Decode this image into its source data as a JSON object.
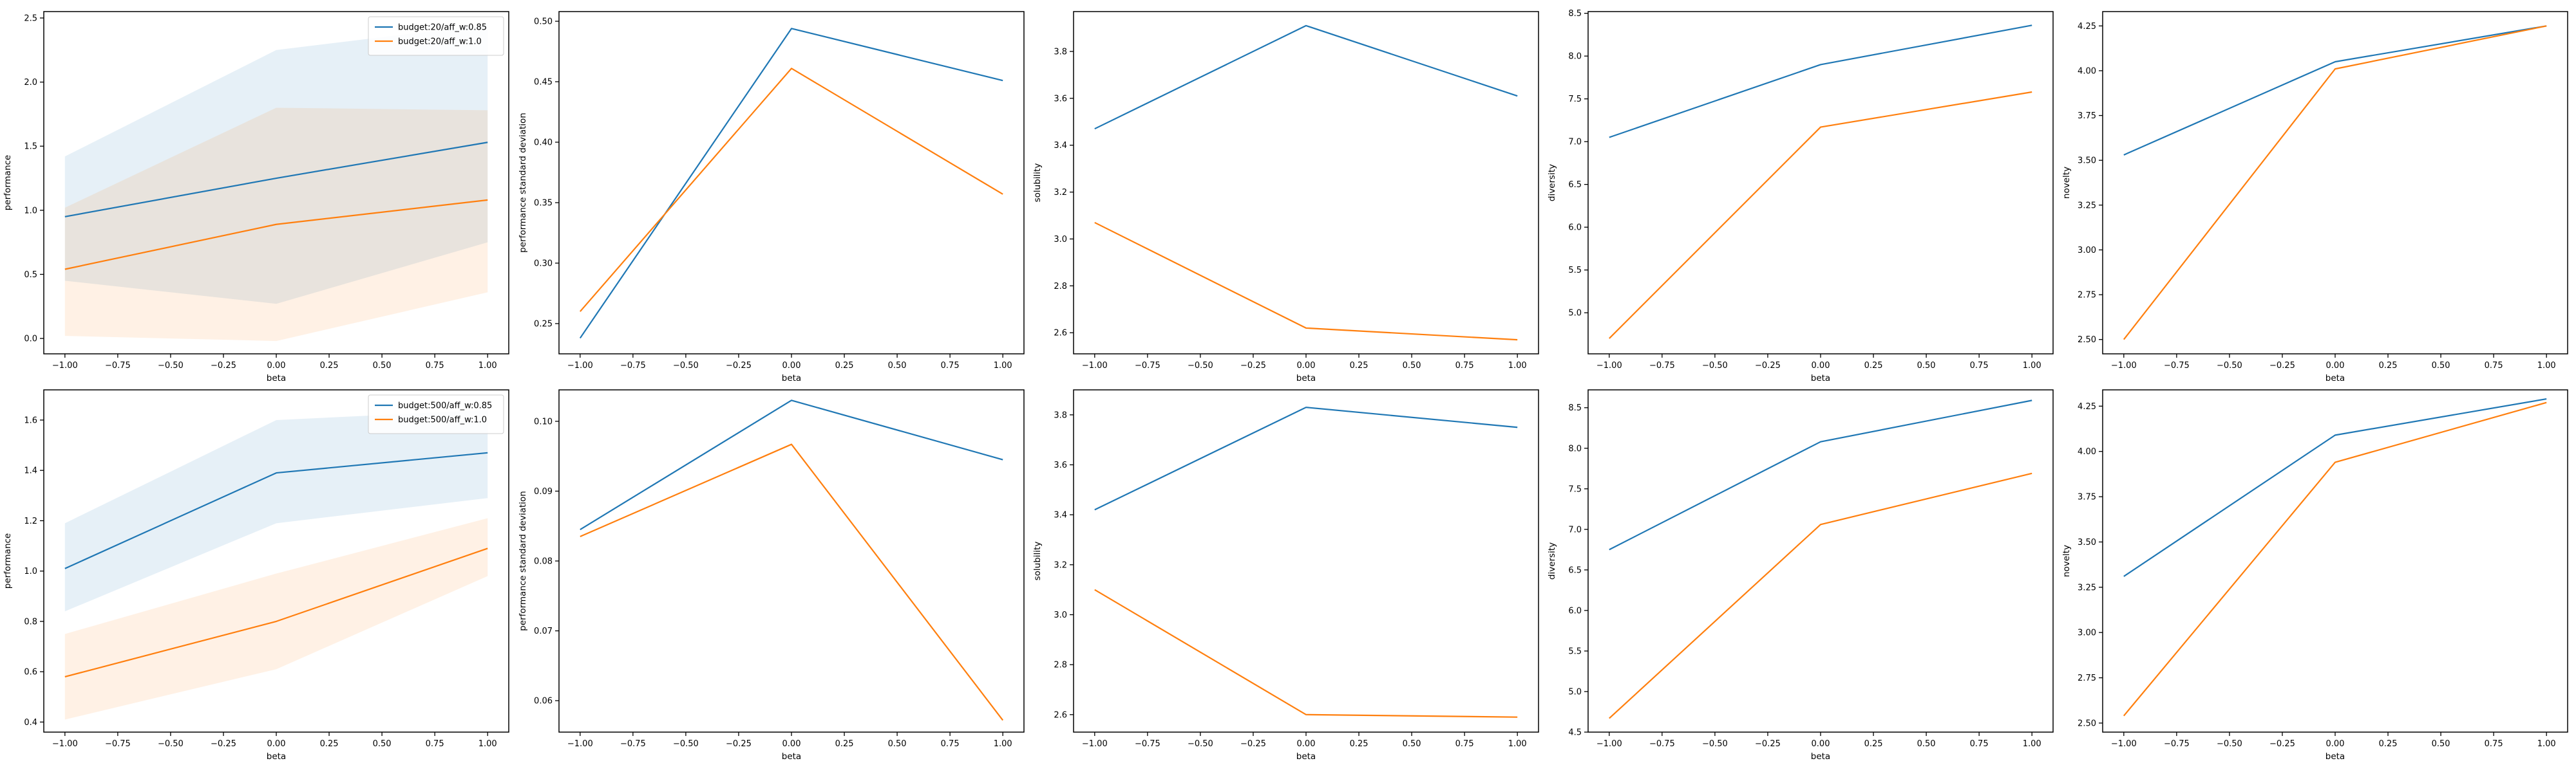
{
  "figure": {
    "colors": {
      "series_0": "#1f77b4",
      "series_1": "#ff7f0e"
    }
  },
  "chart_data": [
    {
      "type": "line",
      "xlabel": "beta",
      "ylabel": "performance",
      "x": [
        -1.0,
        0.0,
        1.0
      ],
      "xlim": [
        -1.1,
        1.1
      ],
      "ylim": [
        -0.12,
        2.55
      ],
      "xticks": [
        "−1.00",
        "−0.75",
        "−0.50",
        "−0.25",
        "0.00",
        "0.25",
        "0.50",
        "0.75",
        "1.00"
      ],
      "yticks": [
        "0.0",
        "0.5",
        "1.0",
        "1.5",
        "2.0",
        "2.5"
      ],
      "legend": "top-right",
      "series": [
        {
          "name": "budget:20/aff_w:0.85",
          "values": [
            0.95,
            1.25,
            1.53
          ],
          "band_lower": [
            0.45,
            0.27,
            0.75
          ],
          "band_upper": [
            1.42,
            2.25,
            2.45
          ]
        },
        {
          "name": "budget:20/aff_w:1.0",
          "values": [
            0.54,
            0.89,
            1.08
          ],
          "band_lower": [
            0.02,
            -0.02,
            0.36
          ],
          "band_upper": [
            1.02,
            1.8,
            1.78
          ]
        }
      ]
    },
    {
      "type": "line",
      "xlabel": "beta",
      "ylabel": "performance standard deviation",
      "x": [
        -1.0,
        0.0,
        1.0
      ],
      "xlim": [
        -1.1,
        1.1
      ],
      "ylim": [
        0.225,
        0.508
      ],
      "xticks": [
        "−1.00",
        "−0.75",
        "−0.50",
        "−0.25",
        "0.00",
        "0.25",
        "0.50",
        "0.75",
        "1.00"
      ],
      "yticks": [
        "0.25",
        "0.30",
        "0.35",
        "0.40",
        "0.45",
        "0.50"
      ],
      "series": [
        {
          "values": [
            0.238,
            0.494,
            0.451
          ]
        },
        {
          "values": [
            0.26,
            0.461,
            0.357
          ]
        }
      ]
    },
    {
      "type": "line",
      "xlabel": "beta",
      "ylabel": "solubility",
      "x": [
        -1.0,
        0.0,
        1.0
      ],
      "xlim": [
        -1.1,
        1.1
      ],
      "ylim": [
        2.51,
        3.97
      ],
      "xticks": [
        "−1.00",
        "−0.75",
        "−0.50",
        "−0.25",
        "0.00",
        "0.25",
        "0.50",
        "0.75",
        "1.00"
      ],
      "yticks": [
        "2.6",
        "2.8",
        "3.0",
        "3.2",
        "3.4",
        "3.6",
        "3.8"
      ],
      "series": [
        {
          "values": [
            3.47,
            3.91,
            3.61
          ]
        },
        {
          "values": [
            3.07,
            2.62,
            2.57
          ]
        }
      ]
    },
    {
      "type": "line",
      "xlabel": "beta",
      "ylabel": "diversity",
      "x": [
        -1.0,
        0.0,
        1.0
      ],
      "xlim": [
        -1.1,
        1.1
      ],
      "ylim": [
        4.52,
        8.52
      ],
      "xticks": [
        "−1.00",
        "−0.75",
        "−0.50",
        "−0.25",
        "0.00",
        "0.25",
        "0.50",
        "0.75",
        "1.00"
      ],
      "yticks": [
        "5.0",
        "5.5",
        "6.0",
        "6.5",
        "7.0",
        "7.5",
        "8.0",
        "8.5"
      ],
      "series": [
        {
          "values": [
            7.05,
            7.9,
            8.36
          ]
        },
        {
          "values": [
            4.7,
            7.17,
            7.58
          ]
        }
      ]
    },
    {
      "type": "line",
      "xlabel": "beta",
      "ylabel": "novelty",
      "x": [
        -1.0,
        0.0,
        1.0
      ],
      "xlim": [
        -1.1,
        1.1
      ],
      "ylim": [
        2.42,
        4.33
      ],
      "xticks": [
        "−1.00",
        "−0.75",
        "−0.50",
        "−0.25",
        "0.00",
        "0.25",
        "0.50",
        "0.75",
        "1.00"
      ],
      "yticks": [
        "2.50",
        "2.75",
        "3.00",
        "3.25",
        "3.50",
        "3.75",
        "4.00",
        "4.25"
      ],
      "series": [
        {
          "values": [
            3.53,
            4.05,
            4.25
          ]
        },
        {
          "values": [
            2.5,
            4.01,
            4.25
          ]
        }
      ]
    },
    {
      "type": "line",
      "xlabel": "beta",
      "ylabel": "performance",
      "x": [
        -1.0,
        0.0,
        1.0
      ],
      "xlim": [
        -1.1,
        1.1
      ],
      "ylim": [
        0.36,
        1.72
      ],
      "xticks": [
        "−1.00",
        "−0.75",
        "−0.50",
        "−0.25",
        "0.00",
        "0.25",
        "0.50",
        "0.75",
        "1.00"
      ],
      "yticks": [
        "0.4",
        "0.6",
        "0.8",
        "1.0",
        "1.2",
        "1.4",
        "1.6"
      ],
      "legend": "top-right",
      "series": [
        {
          "name": "budget:500/aff_w:0.85",
          "values": [
            1.01,
            1.39,
            1.47
          ],
          "band_lower": [
            0.84,
            1.19,
            1.29
          ],
          "band_upper": [
            1.19,
            1.6,
            1.64
          ]
        },
        {
          "name": "budget:500/aff_w:1.0",
          "values": [
            0.58,
            0.8,
            1.09
          ],
          "band_lower": [
            0.41,
            0.61,
            0.98
          ],
          "band_upper": [
            0.75,
            0.99,
            1.21
          ]
        }
      ]
    },
    {
      "type": "line",
      "xlabel": "beta",
      "ylabel": "performance standard deviation",
      "x": [
        -1.0,
        0.0,
        1.0
      ],
      "xlim": [
        -1.1,
        1.1
      ],
      "ylim": [
        0.0555,
        0.1045
      ],
      "xticks": [
        "−1.00",
        "−0.75",
        "−0.50",
        "−0.25",
        "0.00",
        "0.25",
        "0.50",
        "0.75",
        "1.00"
      ],
      "yticks": [
        "0.06",
        "0.07",
        "0.08",
        "0.09",
        "0.10"
      ],
      "series": [
        {
          "values": [
            0.0845,
            0.103,
            0.0945
          ]
        },
        {
          "values": [
            0.0835,
            0.0967,
            0.0572
          ]
        }
      ]
    },
    {
      "type": "line",
      "xlabel": "beta",
      "ylabel": "solubility",
      "x": [
        -1.0,
        0.0,
        1.0
      ],
      "xlim": [
        -1.1,
        1.1
      ],
      "ylim": [
        2.53,
        3.9
      ],
      "xticks": [
        "−1.00",
        "−0.75",
        "−0.50",
        "−0.25",
        "0.00",
        "0.25",
        "0.50",
        "0.75",
        "1.00"
      ],
      "yticks": [
        "2.6",
        "2.8",
        "3.0",
        "3.2",
        "3.4",
        "3.6",
        "3.8"
      ],
      "series": [
        {
          "values": [
            3.42,
            3.83,
            3.75
          ]
        },
        {
          "values": [
            3.1,
            2.6,
            2.59
          ]
        }
      ]
    },
    {
      "type": "line",
      "xlabel": "beta",
      "ylabel": "diversity",
      "x": [
        -1.0,
        0.0,
        1.0
      ],
      "xlim": [
        -1.1,
        1.1
      ],
      "ylim": [
        4.5,
        8.72
      ],
      "xticks": [
        "−1.00",
        "−0.75",
        "−0.50",
        "−0.25",
        "0.00",
        "0.25",
        "0.50",
        "0.75",
        "1.00"
      ],
      "yticks": [
        "4.5",
        "5.0",
        "5.5",
        "6.0",
        "6.5",
        "7.0",
        "7.5",
        "8.0",
        "8.5"
      ],
      "series": [
        {
          "values": [
            6.75,
            8.08,
            8.59
          ]
        },
        {
          "values": [
            4.67,
            7.06,
            7.69
          ]
        }
      ]
    },
    {
      "type": "line",
      "xlabel": "beta",
      "ylabel": "novelty",
      "x": [
        -1.0,
        0.0,
        1.0
      ],
      "xlim": [
        -1.1,
        1.1
      ],
      "ylim": [
        2.45,
        4.34
      ],
      "xticks": [
        "−1.00",
        "−0.75",
        "−0.50",
        "−0.25",
        "0.00",
        "0.25",
        "0.50",
        "0.75",
        "1.00"
      ],
      "yticks": [
        "2.50",
        "2.75",
        "3.00",
        "3.25",
        "3.50",
        "3.75",
        "4.00",
        "4.25"
      ],
      "series": [
        {
          "values": [
            3.31,
            4.09,
            4.29
          ]
        },
        {
          "values": [
            2.54,
            3.94,
            4.27
          ]
        }
      ]
    }
  ]
}
